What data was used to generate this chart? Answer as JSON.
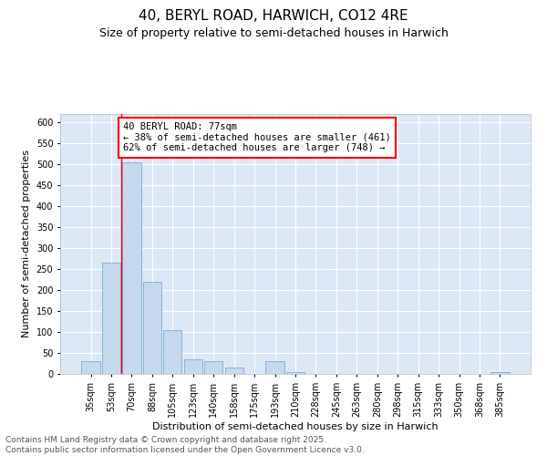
{
  "title": "40, BERYL ROAD, HARWICH, CO12 4RE",
  "subtitle": "Size of property relative to semi-detached houses in Harwich",
  "xlabel": "Distribution of semi-detached houses by size in Harwich",
  "ylabel": "Number of semi-detached properties",
  "categories": [
    "35sqm",
    "53sqm",
    "70sqm",
    "88sqm",
    "105sqm",
    "123sqm",
    "140sqm",
    "158sqm",
    "175sqm",
    "193sqm",
    "210sqm",
    "228sqm",
    "245sqm",
    "263sqm",
    "280sqm",
    "298sqm",
    "315sqm",
    "333sqm",
    "350sqm",
    "368sqm",
    "385sqm"
  ],
  "values": [
    30,
    265,
    505,
    220,
    105,
    35,
    30,
    15,
    0,
    30,
    5,
    0,
    0,
    0,
    0,
    0,
    0,
    0,
    0,
    0,
    5
  ],
  "bar_color": "#c5d8ee",
  "bar_edge_color": "#7aadd4",
  "property_line_x": 1.5,
  "annotation_text": "40 BERYL ROAD: 77sqm\n← 38% of semi-detached houses are smaller (461)\n62% of semi-detached houses are larger (748) →",
  "ylim": [
    0,
    620
  ],
  "yticks": [
    0,
    50,
    100,
    150,
    200,
    250,
    300,
    350,
    400,
    450,
    500,
    550,
    600
  ],
  "background_color": "#dce8f5",
  "footer_text": "Contains HM Land Registry data © Crown copyright and database right 2025.\nContains public sector information licensed under the Open Government Licence v3.0.",
  "title_fontsize": 11,
  "subtitle_fontsize": 9,
  "xlabel_fontsize": 8,
  "ylabel_fontsize": 8,
  "tick_fontsize": 7,
  "annotation_fontsize": 7.5,
  "footer_fontsize": 6.5
}
